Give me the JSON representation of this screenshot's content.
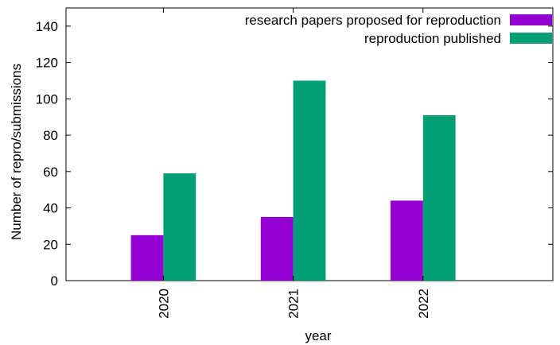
{
  "chart_data": {
    "type": "bar",
    "categories": [
      "2020",
      "2021",
      "2022"
    ],
    "series": [
      {
        "name": "research papers proposed for reproduction",
        "values": [
          25,
          35,
          44
        ],
        "color": "#9400d3"
      },
      {
        "name": "reproduction published",
        "values": [
          59,
          110,
          91
        ],
        "color": "#009e73"
      }
    ],
    "xlabel": "year",
    "ylabel": "Number of repro/submissions",
    "ylim": [
      0,
      150
    ],
    "yticks": [
      0,
      20,
      40,
      60,
      80,
      100,
      120,
      140
    ],
    "grid": false,
    "legend_position": "top-right"
  }
}
